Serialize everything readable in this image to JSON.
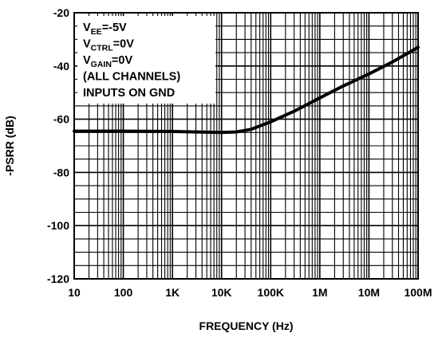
{
  "chart_data": {
    "type": "line",
    "title": "",
    "xlabel": "FREQUENCY (Hz)",
    "ylabel": "-PSRR (dB)",
    "x_scale": "log",
    "xlim": [
      10,
      100000000
    ],
    "ylim": [
      -120,
      -20
    ],
    "x_ticks": [
      10,
      100,
      1000,
      10000,
      100000,
      1000000,
      10000000,
      100000000
    ],
    "x_tick_labels": [
      "10",
      "100",
      "1K",
      "10K",
      "100K",
      "1M",
      "10M",
      "100M"
    ],
    "y_ticks": [
      -120,
      -100,
      -80,
      -60,
      -40,
      -20
    ],
    "y_tick_labels": [
      "-120",
      "-100",
      "-80",
      "-60",
      "-40",
      "-20"
    ],
    "grid": true,
    "series": [
      {
        "color": "#000000",
        "x": [
          10,
          100,
          1000,
          3000,
          10000,
          20000,
          40000,
          100000,
          300000,
          1000000,
          3000000,
          10000000,
          30000000,
          100000000
        ],
        "y": [
          -64.5,
          -64.5,
          -64.6,
          -64.8,
          -65,
          -64.8,
          -63.8,
          -61,
          -57,
          -52,
          -47.5,
          -43,
          -38.5,
          -33
        ]
      }
    ],
    "annotation": {
      "position": "top-left",
      "lines": [
        {
          "main": "V",
          "sub": "EE",
          "rest": "=-5V"
        },
        {
          "main": "V",
          "sub": "CTRL",
          "rest": "=0V"
        },
        {
          "main": "V",
          "sub": "GAIN",
          "rest": "=0V"
        },
        {
          "main": "(ALL CHANNELS)",
          "sub": "",
          "rest": ""
        },
        {
          "main": "INPUTS ON GND",
          "sub": "",
          "rest": ""
        }
      ]
    }
  }
}
